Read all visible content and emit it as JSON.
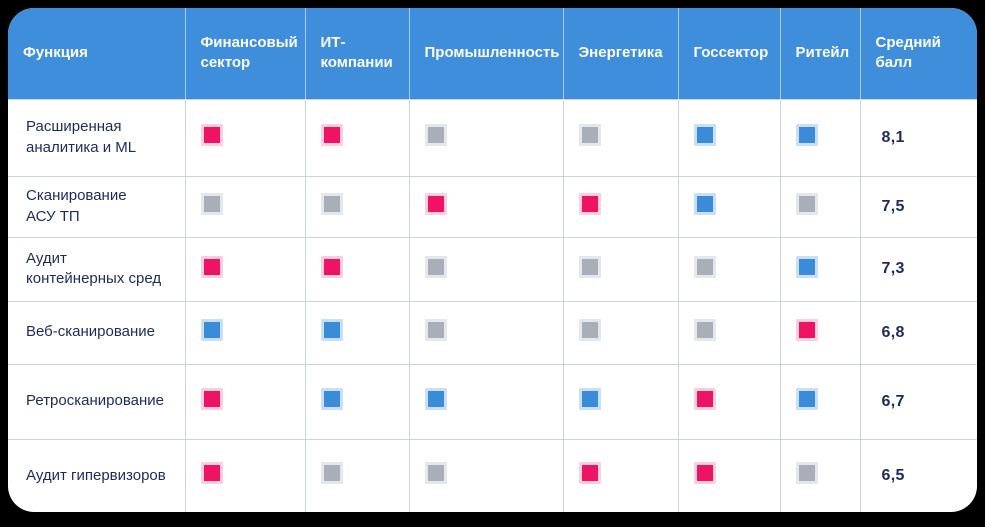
{
  "colors": {
    "header_background": "#3E8EDB",
    "header_text": "#FFFFFF",
    "body_text": "#1F2A5C",
    "grid_line": "#CBD3DC",
    "page_background": "#000000",
    "mark_pink": "#EE1365",
    "mark_blue": "#3A8CDB",
    "mark_gray": "#A9AFB8"
  },
  "chart_data": {
    "type": "table",
    "title": "",
    "columns": [
      "Функция",
      "Финансовый\nсектор",
      "ИТ-\nкомпании",
      "Промышленность",
      "Энергетика",
      "Госсектор",
      "Ритейл",
      "Средний\nбалл"
    ],
    "sector_columns": [
      "Финансовый сектор",
      "ИТ-компании",
      "Промышленность",
      "Энергетика",
      "Госсектор",
      "Ритейл"
    ],
    "score_column": "Средний балл",
    "rows": [
      {
        "label": "Расширенная\nаналитика и ML",
        "cells": [
          "pink",
          "pink",
          "gray",
          "gray",
          "blue",
          "blue"
        ],
        "score": "8,1"
      },
      {
        "label": "Сканирование\nАСУ ТП",
        "cells": [
          "gray",
          "gray",
          "pink",
          "pink",
          "blue",
          "gray"
        ],
        "score": "7,5"
      },
      {
        "label": "Аудит\nконтейнерных сред",
        "cells": [
          "pink",
          "pink",
          "gray",
          "gray",
          "gray",
          "blue"
        ],
        "score": "7,3"
      },
      {
        "label": "Веб-сканирование",
        "cells": [
          "blue",
          "blue",
          "gray",
          "gray",
          "gray",
          "pink"
        ],
        "score": "6,8"
      },
      {
        "label": "Ретросканирование",
        "cells": [
          "pink",
          "blue",
          "blue",
          "blue",
          "pink",
          "blue"
        ],
        "score": "6,7"
      },
      {
        "label": "Аудит гипервизоров",
        "cells": [
          "pink",
          "gray",
          "gray",
          "pink",
          "pink",
          "gray"
        ],
        "score": "6,5"
      }
    ]
  }
}
